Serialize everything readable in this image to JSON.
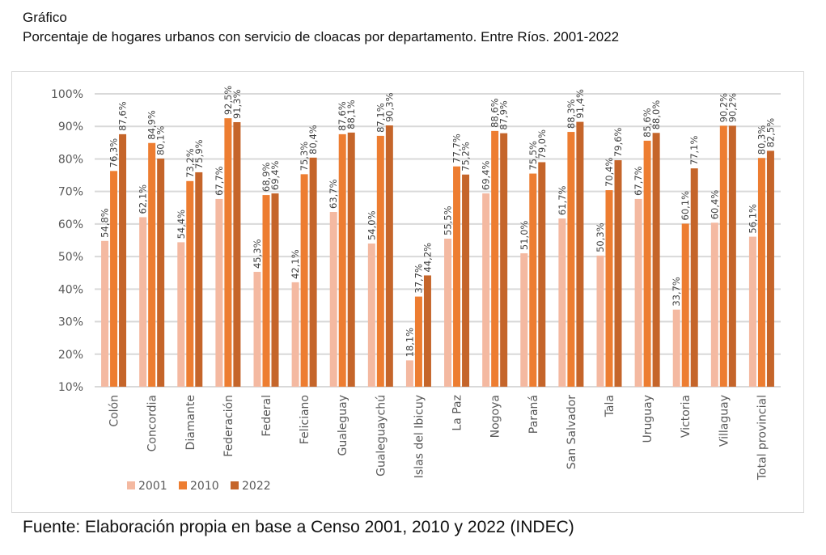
{
  "header": {
    "label": "Gráfico",
    "title": "Porcentaje de hogares urbanos con servicio de cloacas por departamento. Entre Ríos. 2001-2022"
  },
  "source": "Fuente: Elaboración propia en base a Censo 2001, 2010 y 2022 (INDEC)",
  "chart_data": {
    "type": "bar",
    "title": "Porcentaje de hogares urbanos con servicio de cloacas por departamento. Entre Ríos. 2001-2022",
    "xlabel": "",
    "ylabel": "",
    "ylim": [
      10,
      100
    ],
    "yticks": [
      10,
      20,
      30,
      40,
      50,
      60,
      70,
      80,
      90,
      100
    ],
    "ytick_labels": [
      "10%",
      "20%",
      "30%",
      "40%",
      "50%",
      "60%",
      "70%",
      "80%",
      "90%",
      "100%"
    ],
    "grid": true,
    "legend_position": "bottom-left",
    "categories": [
      "Colón",
      "Concordia",
      "Diamante",
      "Federación",
      "Federal",
      "Feliciano",
      "Gualeguay",
      "Gualeguaychú",
      "Islas del Ibicuy",
      "La Paz",
      "Nogoya",
      "Paraná",
      "San Salvador",
      "Tala",
      "Uruguay",
      "Victoria",
      "Villaguay",
      "Total provincial"
    ],
    "series": [
      {
        "name": "2001",
        "color": "#f4b9a1",
        "values": [
          54.8,
          62.1,
          54.4,
          67.7,
          45.3,
          42.1,
          63.7,
          54.0,
          18.1,
          55.5,
          69.4,
          51.0,
          61.7,
          50.3,
          67.7,
          33.7,
          60.4,
          56.1
        ],
        "labels": [
          "54,8%",
          "62,1%",
          "54,4%",
          "67,7%",
          "45,3%",
          "42,1%",
          "63,7%",
          "54,0%",
          "18,1%",
          "55,5%",
          "69,4%",
          "51,0%",
          "61,7%",
          "50,3%",
          "67,7%",
          "33,7%",
          "60,4%",
          "56,1%"
        ]
      },
      {
        "name": "2010",
        "color": "#ed7d31",
        "values": [
          76.3,
          84.9,
          73.2,
          92.5,
          68.9,
          75.3,
          87.6,
          87.1,
          37.7,
          77.7,
          88.6,
          75.5,
          88.3,
          70.4,
          85.6,
          60.1,
          90.2,
          80.3
        ],
        "labels": [
          "76,3%",
          "84,9%",
          "73,2%",
          "92,5%",
          "68,9%",
          "75,3%",
          "87,6%",
          "87,1%",
          "37,7%",
          "77,7%",
          "88,6%",
          "75,5%",
          "88,3%",
          "70,4%",
          "85,6%",
          "60,1%",
          "90,2%",
          "80,3%"
        ]
      },
      {
        "name": "2022",
        "color": "#c5652a",
        "values": [
          87.6,
          80.1,
          75.9,
          91.3,
          69.4,
          80.4,
          88.1,
          90.3,
          44.2,
          75.2,
          87.9,
          79.0,
          91.4,
          79.6,
          88.0,
          77.1,
          90.2,
          82.5
        ],
        "labels": [
          "87,6%",
          "80,1%",
          "75,9%",
          "91,3%",
          "69,4%",
          "80,4%",
          "88,1%",
          "90,3%",
          "44,2%",
          "75,2%",
          "87,9%",
          "79,0%",
          "91,4%",
          "79,6%",
          "88,0%",
          "77,1%",
          "90,2%",
          "82,5%"
        ]
      }
    ]
  }
}
